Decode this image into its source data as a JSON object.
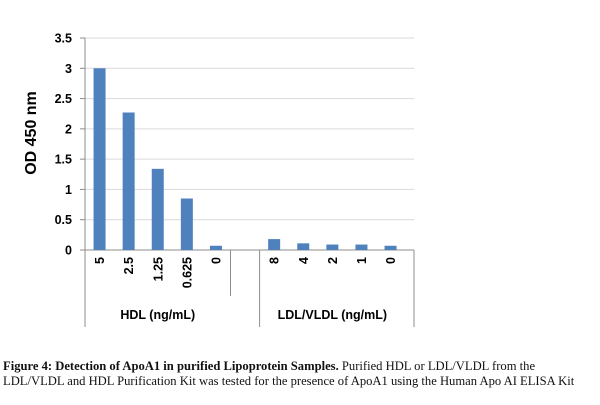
{
  "chart_data": {
    "type": "bar",
    "ylabel": "OD 450 nm",
    "ylim": [
      0,
      3.5
    ],
    "yticks": [
      "0",
      "0.5",
      "1",
      "1.5",
      "2",
      "2.5",
      "3",
      "3.5"
    ],
    "grid": true,
    "bar_color": "#4f81bd",
    "groups": [
      {
        "label": "HDL (ng/mL)",
        "categories": [
          "5",
          "2.5",
          "1.25",
          "0.625",
          "0"
        ],
        "values": [
          3.0,
          2.27,
          1.34,
          0.85,
          0.07
        ]
      },
      {
        "label": "LDL/VLDL (ng/mL)",
        "categories": [
          "8",
          "4",
          "2",
          "1",
          "0"
        ],
        "values": [
          0.18,
          0.11,
          0.09,
          0.09,
          0.07
        ]
      }
    ]
  },
  "caption": {
    "bold": "Figure 4: Detection of ApoA1 in purified Lipoprotein Samples.",
    "text": "Purified HDL or LDL/VLDL from the LDL/VLDL and HDL Purification Kit was tested for the presence of ApoA1 using the Human Apo AI ELISA Kit"
  }
}
